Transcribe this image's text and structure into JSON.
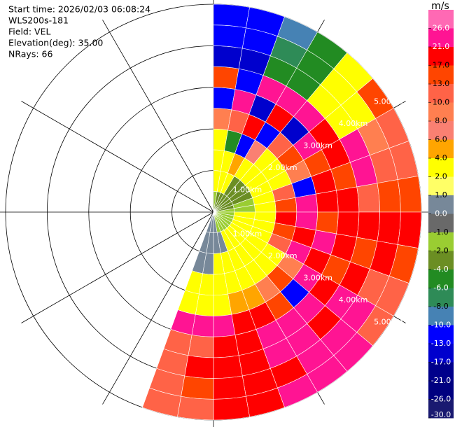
{
  "chart_data": {
    "type": "ppi",
    "annotations": [
      "Start time: 2026/02/03 06:08:24",
      "WLS200s-181",
      "Field: VEL",
      "Elevation(deg): 35.00",
      "NRays: 66"
    ],
    "colorbar": {
      "label": "m/s",
      "ticks": [
        {
          "value": 26,
          "label": "26.0"
        },
        {
          "value": 21,
          "label": "21.0"
        },
        {
          "value": 17,
          "label": "17.0"
        },
        {
          "value": 13,
          "label": "13.0"
        },
        {
          "value": 10,
          "label": "10.0"
        },
        {
          "value": 8,
          "label": "8.0"
        },
        {
          "value": 6,
          "label": "6.0"
        },
        {
          "value": 4,
          "label": "4.0"
        },
        {
          "value": 2,
          "label": "2.0"
        },
        {
          "value": 1,
          "label": "1.0"
        },
        {
          "value": 0,
          "label": "0.0"
        },
        {
          "value": -1,
          "label": "-1.0"
        },
        {
          "value": -2,
          "label": "-2.0"
        },
        {
          "value": -4,
          "label": "-4.0"
        },
        {
          "value": -6,
          "label": "-6.0"
        },
        {
          "value": -8,
          "label": "-8.0"
        },
        {
          "value": -10,
          "label": "-10.0"
        },
        {
          "value": -13,
          "label": "-13.0"
        },
        {
          "value": -17,
          "label": "-17.0"
        },
        {
          "value": -21,
          "label": "-21.0"
        },
        {
          "value": -26,
          "label": "-26.0"
        },
        {
          "value": -30,
          "label": "-30.0"
        }
      ],
      "colors": [
        "#ff69b4",
        "#ff1493",
        "#ff0000",
        "#ff4500",
        "#ff6347",
        "#ff7f50",
        "#fa8072",
        "#ffa500",
        "#ffff00",
        "#ffff66",
        "#778899",
        "#696969",
        "#9acd32",
        "#6b8e23",
        "#228b22",
        "#2e8b57",
        "#4682b4",
        "#0000ff",
        "#0000cd",
        "#00008b",
        "#000080",
        "#191970"
      ]
    },
    "range_rings": [
      {
        "value": 1,
        "label": "1.00km"
      },
      {
        "value": 2,
        "label": "2.00km"
      },
      {
        "value": 3,
        "label": "3.00km"
      },
      {
        "value": 4,
        "label": "4.00km"
      },
      {
        "value": 5,
        "label": "5.00km"
      }
    ],
    "rlim": [
      0,
      5
    ],
    "azimuth_ticks": [
      0,
      30,
      60,
      90,
      120,
      150,
      180,
      210,
      240,
      270,
      300,
      330
    ],
    "azimuth_edges": [
      0,
      10,
      20,
      30,
      40,
      50,
      60,
      70,
      80,
      90,
      100,
      110,
      120,
      130,
      140,
      150,
      160,
      170,
      180,
      190,
      200
    ],
    "range_edges": [
      0,
      0.5,
      1,
      1.5,
      2,
      2.5,
      3,
      3.5,
      4,
      4.5,
      5
    ],
    "values": [
      [
        -1.5,
        3,
        3,
        3,
        9,
        -11,
        15,
        -15,
        -11,
        -11
      ],
      [
        -2.5,
        3,
        3,
        -5,
        12,
        22,
        -11,
        -15,
        -11,
        -11
      ],
      [
        -3,
        3,
        5,
        -11,
        18,
        -15,
        22,
        -5,
        -7,
        -9
      ],
      [
        -3,
        -3,
        3,
        7,
        -11,
        18,
        22,
        -5,
        -5,
        -5
      ],
      [
        -3,
        -3,
        3,
        3,
        11,
        -15,
        22,
        3,
        3,
        3
      ],
      [
        -3,
        -3,
        3,
        3,
        15,
        22,
        18,
        3,
        3,
        15
      ],
      [
        -3,
        -3,
        3,
        3,
        9,
        15,
        18,
        22,
        9,
        11
      ],
      [
        -3,
        -1.5,
        3,
        11,
        -11,
        18,
        15,
        22,
        11,
        11
      ],
      [
        -1.5,
        -1.5,
        3,
        15,
        22,
        18,
        18,
        12,
        15,
        15
      ],
      [
        -1.5,
        3,
        3,
        18,
        22,
        15,
        18,
        18,
        18,
        18
      ],
      [
        -1.5,
        3,
        3,
        15,
        18,
        22,
        18,
        15,
        18,
        15
      ],
      [
        -1.5,
        3,
        3,
        11,
        22,
        18,
        15,
        18,
        12,
        11
      ],
      [
        -1.5,
        3,
        3,
        3,
        9,
        22,
        18,
        22,
        23,
        11
      ],
      [
        -1.5,
        3,
        3,
        3,
        15,
        -11,
        22,
        18,
        22,
        23
      ],
      [
        -1.5,
        3,
        3,
        3,
        9,
        15,
        22,
        23,
        22,
        22
      ],
      [
        -1.5,
        3,
        3,
        3,
        5,
        18,
        23,
        22,
        18,
        23
      ],
      [
        -1.5,
        0.5,
        3,
        3,
        5,
        18,
        18,
        18,
        18,
        18
      ],
      [
        0.5,
        0.5,
        3,
        3,
        3,
        22,
        18,
        18,
        18,
        18
      ],
      [
        0.5,
        0.5,
        0.5,
        3,
        3,
        23,
        11,
        18,
        15,
        12
      ],
      [
        0.5,
        0.5,
        0.5,
        3,
        3,
        23,
        11,
        12,
        11,
        11
      ]
    ]
  }
}
